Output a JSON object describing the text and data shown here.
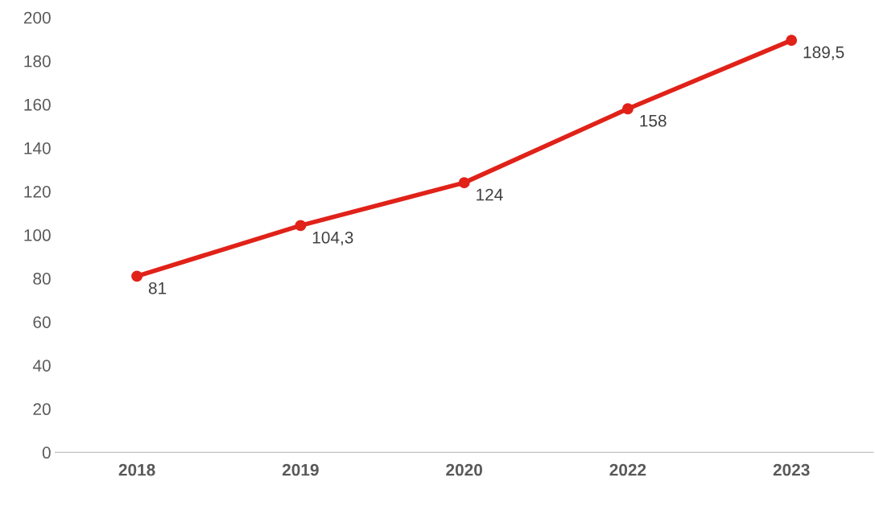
{
  "chart_data": {
    "type": "line",
    "categories": [
      "2018",
      "2019",
      "2020",
      "2022",
      "2023"
    ],
    "series": [
      {
        "color": "#e02219",
        "values": [
          81,
          104.3,
          124,
          158,
          189.5
        ]
      }
    ],
    "value_labels": [
      "81",
      "104,3",
      "124",
      "158",
      "189,5"
    ],
    "ylim": [
      0,
      200
    ],
    "yticks": [
      0,
      20,
      40,
      60,
      80,
      100,
      120,
      140,
      160,
      180,
      200
    ],
    "marker": "circle",
    "line_style": "solid",
    "grid": false,
    "legend": false
  }
}
